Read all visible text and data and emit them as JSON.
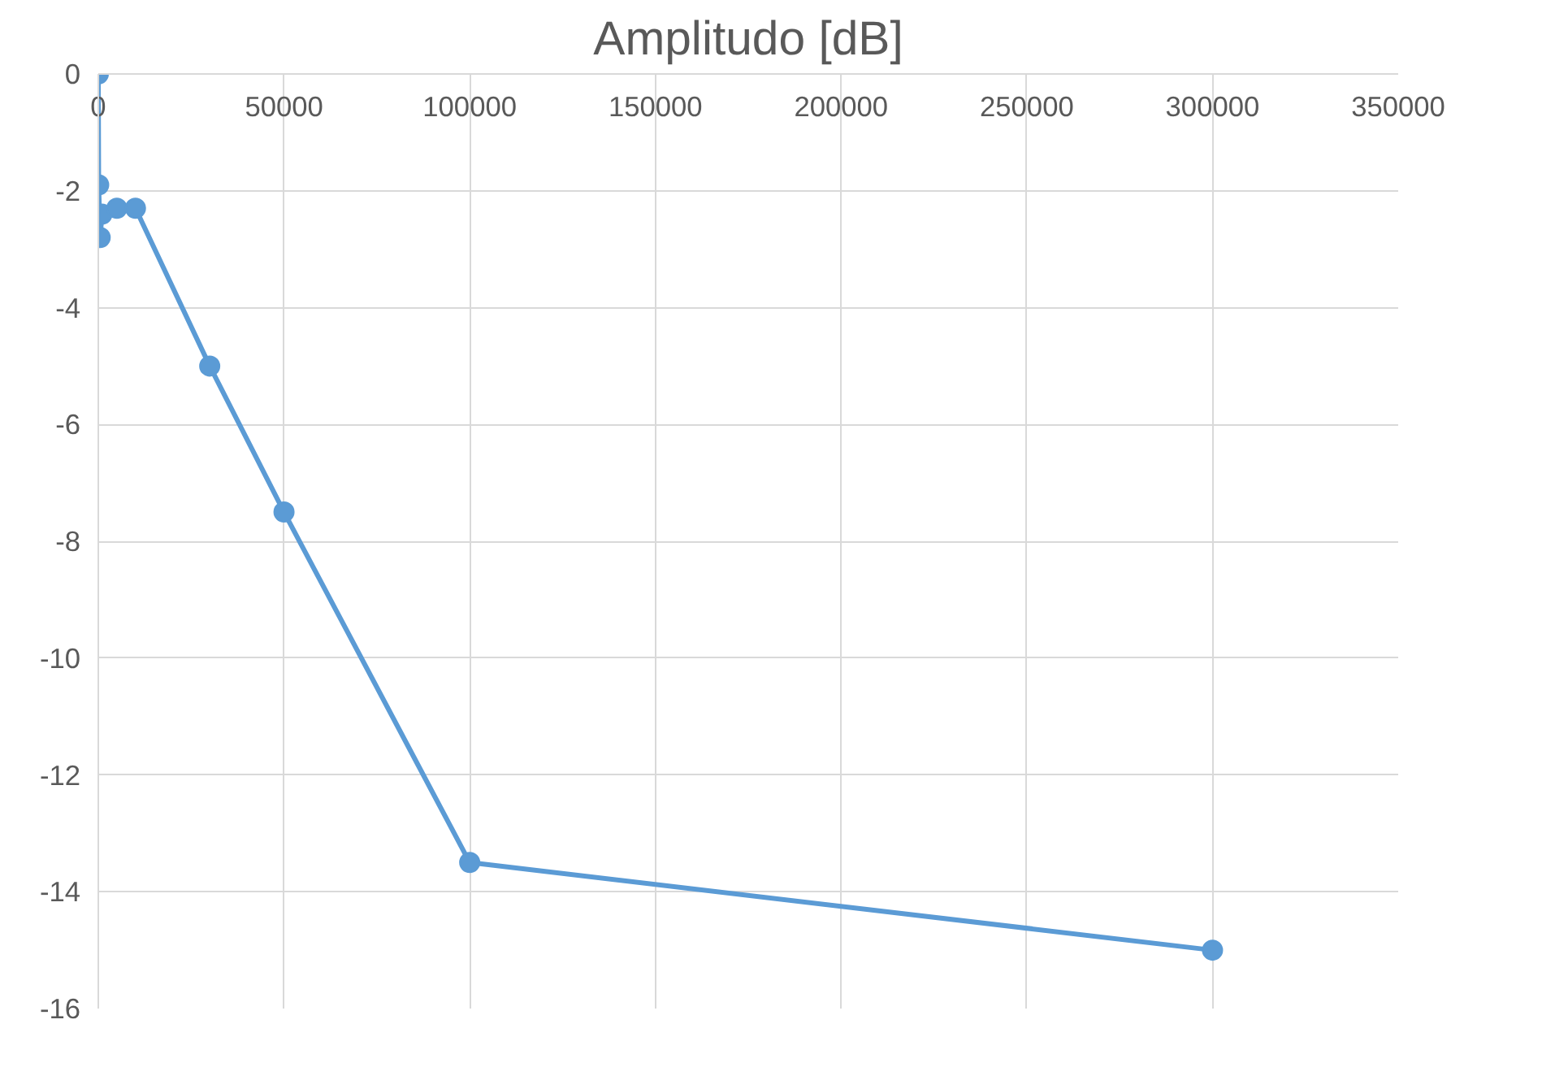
{
  "chart_data": {
    "type": "line",
    "title": "Amplitudo [dB]",
    "x": [
      0,
      100,
      500,
      1000,
      5000,
      10000,
      30000,
      50000,
      100000,
      300000
    ],
    "series": [
      {
        "color": "#5b9bd5",
        "values": [
          0,
          -1.9,
          -2.8,
          -2.4,
          -2.3,
          -2.3,
          -5,
          -7.5,
          -13.5,
          -15
        ]
      }
    ],
    "xlim": [
      0,
      350000
    ],
    "xticks": [
      0,
      50000,
      100000,
      150000,
      200000,
      250000,
      300000,
      350000
    ],
    "ylim": [
      -16,
      0
    ],
    "yticks": [
      -16,
      -14,
      -12,
      -10,
      -8,
      -6,
      -4,
      -2,
      0
    ],
    "grid": true,
    "marker": "circle"
  }
}
